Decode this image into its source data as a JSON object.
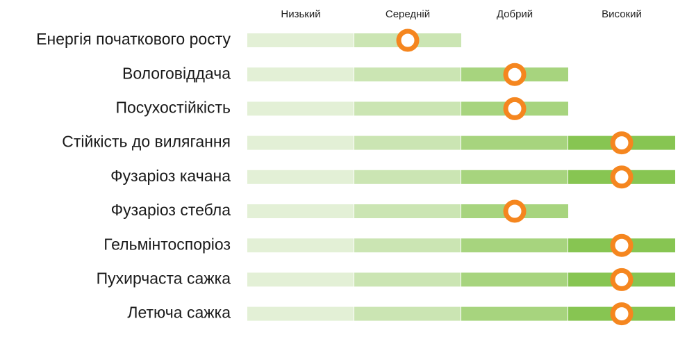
{
  "chart_data": {
    "type": "rating-bars",
    "levels": [
      "Низький",
      "Середній",
      "Добрий",
      "Високий"
    ],
    "level_colors": [
      "#e3f0d6",
      "#cbe5b3",
      "#a7d47e",
      "#87c552"
    ],
    "marker_color": "#f5861f",
    "rows": [
      {
        "label": "Енергія початкового росту",
        "bar_level": 2,
        "value": 1.5
      },
      {
        "label": "Вологовіддача",
        "bar_level": 3,
        "value": 2.5
      },
      {
        "label": "Посухостійкість",
        "bar_level": 3,
        "value": 2.5
      },
      {
        "label": "Стійкість до вилягання",
        "bar_level": 4,
        "value": 3.5
      },
      {
        "label": "Фузаріоз качана",
        "bar_level": 4,
        "value": 3.5
      },
      {
        "label": "Фузаріоз стебла",
        "bar_level": 3,
        "value": 2.5
      },
      {
        "label": "Гельмінтоспоріоз",
        "bar_level": 4,
        "value": 3.5
      },
      {
        "label": "Пухирчаста сажка",
        "bar_level": 4,
        "value": 3.5
      },
      {
        "label": "Летюча сажка",
        "bar_level": 4,
        "value": 3.5
      }
    ]
  }
}
